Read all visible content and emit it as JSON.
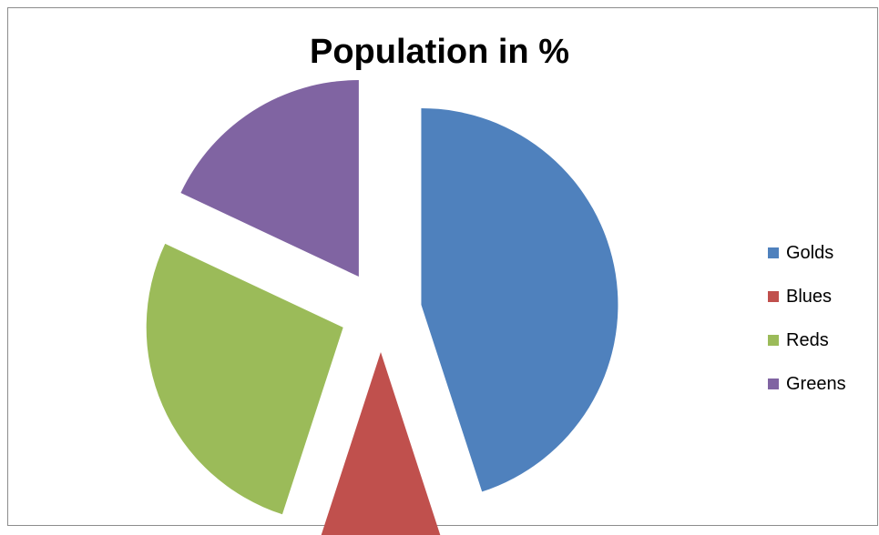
{
  "chart_data": {
    "type": "pie",
    "title": "Population in %",
    "categories": [
      "Golds",
      "Blues",
      "Reds",
      "Greens"
    ],
    "values": [
      45,
      10,
      27,
      18
    ],
    "exploded": true,
    "start_angle_deg": 0,
    "direction": "clockwise",
    "legend_position": "right",
    "colors": [
      "#4f81bd",
      "#c0504d",
      "#9bbb59",
      "#8064a2"
    ]
  }
}
